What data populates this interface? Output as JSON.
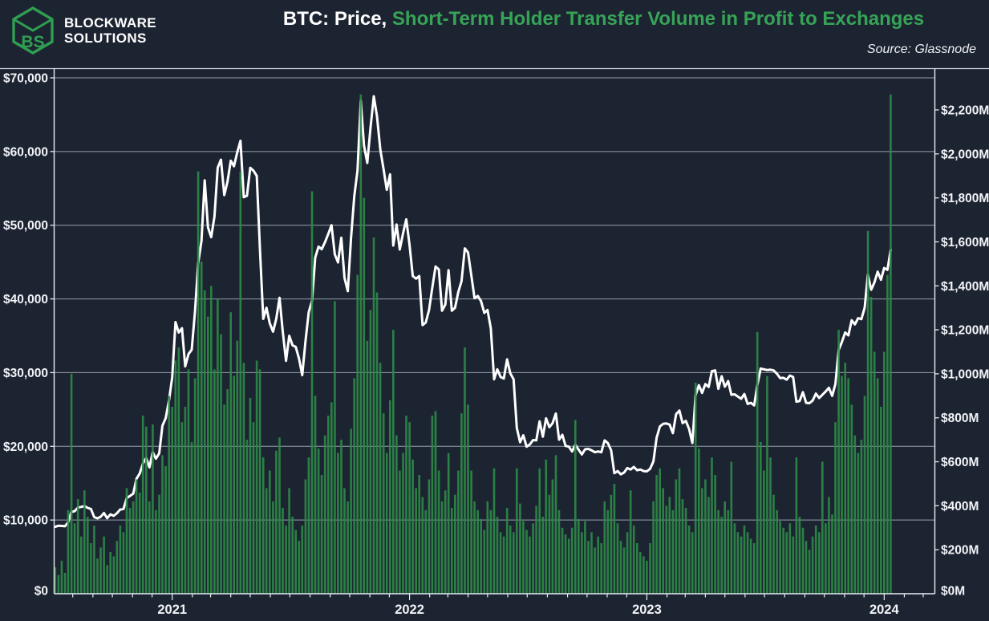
{
  "header": {
    "logo_line1": "BLOCKWARE",
    "logo_line2": "SOLUTIONS",
    "logo_mark": "BS",
    "title_white": "BTC: Price,",
    "title_green": "Short-Term Holder Transfer Volume in Profit to Exchanges",
    "source": "Source: Glassnode"
  },
  "colors": {
    "background": "#1d2431",
    "bars_green": "#2e8b48",
    "title_green": "#36a457",
    "logo_green": "#2f9e51",
    "price_line": "#ffffff",
    "grid": "#aab3c2",
    "frame": "#e8ecf2",
    "text": "#f1f4f8"
  },
  "chart_data": {
    "type": "line+bar",
    "title": "BTC: Price, Short-Term Holder Transfer Volume in Profit to Exchanges",
    "source": "Source: Glassnode",
    "start_date": "2020-07-05",
    "interval_days": 5,
    "grid": true,
    "left_axis": {
      "series": "BTC price (USD, white line)",
      "range": [
        0,
        70000
      ],
      "tick_values": [
        0,
        10000,
        20000,
        30000,
        40000,
        50000,
        60000,
        70000
      ],
      "tick_labels": [
        "$0",
        "$10,000",
        "$20,000",
        "$30,000",
        "$40,000",
        "$50,000",
        "$60,000",
        "$70,000"
      ]
    },
    "right_axis": {
      "series": "STH transfer volume in profit to exchanges (USD millions, green bars)",
      "range": [
        0,
        2400
      ],
      "tick_values": [
        0,
        200,
        400,
        600,
        800,
        1000,
        1200,
        1400,
        1600,
        1800,
        2000,
        2200
      ],
      "tick_labels": [
        "$0M",
        "$200M",
        "$400M",
        "$600M",
        "$800M",
        "$1,000M",
        "$1,200M",
        "$1,400M",
        "$1,600M",
        "$1,800M",
        "$2,000M",
        "$2,200M"
      ]
    },
    "year_ticks": [
      {
        "label": "2021",
        "day_offset": 180
      },
      {
        "label": "2022",
        "day_offset": 545
      },
      {
        "label": "2023",
        "day_offset": 910
      },
      {
        "label": "2024",
        "day_offset": 1275
      }
    ],
    "price": [
      9080,
      9230,
      9200,
      9160,
      9700,
      11100,
      11200,
      11680,
      11780,
      11900,
      11650,
      11500,
      10400,
      10230,
      10440,
      10950,
      10250,
      10770,
      10570,
      10930,
      11430,
      11500,
      12970,
      13270,
      13560,
      15590,
      16320,
      17650,
      18420,
      17150,
      19200,
      18320,
      19040,
      22800,
      23830,
      26250,
      29370,
      36850,
      35450,
      36020,
      30850,
      32520,
      33110,
      38300,
      44850,
      47900,
      56100,
      49700,
      48380,
      51200,
      57800,
      58900,
      54100,
      55900,
      58750,
      58000,
      59900,
      61450,
      53800,
      54000,
      57800,
      57400,
      56700,
      46700,
      37300,
      38800,
      36700,
      35550,
      37300,
      40150,
      35600,
      31600,
      35000,
      33700,
      33500,
      31900,
      29650,
      34300,
      38200,
      39750,
      45600,
      47100,
      46750,
      47700,
      48830,
      50000,
      46050,
      44950,
      48300,
      42850,
      41050,
      48200,
      53950,
      57400,
      66900,
      60800,
      58450,
      63200,
      67500,
      64800,
      60300,
      57600,
      54800,
      56900,
      47250,
      50100,
      46700,
      48900,
      50800,
      47300,
      43100,
      42750,
      43100,
      36450,
      36800,
      38500,
      41500,
      44400,
      44000,
      38400,
      39250,
      43900,
      38400,
      38800,
      40950,
      42400,
      46850,
      46300,
      43200,
      40100,
      40400,
      39700,
      38100,
      38500,
      36000,
      29100,
      30450,
      29400,
      29200,
      31800,
      29900,
      29100,
      22500,
      20550,
      21500,
      19950,
      20250,
      20850,
      20800,
      23400,
      21300,
      23800,
      22600,
      23150,
      24450,
      20900,
      21550,
      20050,
      19950,
      19300,
      20200,
      19550,
      18900,
      19600,
      19650,
      19450,
      19200,
      19300,
      19200,
      20800,
      20450,
      19450,
      16350,
      16650,
      16200,
      16450,
      17050,
      16850,
      17200,
      16750,
      16850,
      16650,
      16600,
      16950,
      17950,
      21150,
      22700,
      23050,
      23100,
      22950,
      21800,
      24350,
      24850,
      23150,
      23450,
      22350,
      20450,
      26950,
      28300,
      27250,
      28450,
      28050,
      30200,
      30300,
      27800,
      29500,
      28100,
      28850,
      27000,
      27050,
      26750,
      26450,
      27100,
      25750,
      25900,
      25550,
      28300,
      30550,
      30450,
      30350,
      30400,
      30300,
      29850,
      29250,
      29300,
      29050,
      29600,
      29400,
      26050,
      26150,
      27350,
      25900,
      25850,
      26200,
      27150,
      26550,
      27000,
      27450,
      27950,
      26850,
      28450,
      33100,
      34150,
      35450,
      35050,
      37100,
      36550,
      37400,
      37250,
      38800,
      43300,
      41250,
      42250,
      43700,
      42600,
      44200,
      43950,
      46650
    ],
    "volume_musd": [
      120,
      85,
      150,
      95,
      380,
      1000,
      320,
      430,
      260,
      470,
      350,
      230,
      310,
      160,
      210,
      260,
      130,
      190,
      170,
      240,
      310,
      280,
      480,
      390,
      420,
      520,
      460,
      810,
      760,
      420,
      770,
      380,
      450,
      630,
      580,
      900,
      850,
      1060,
      1120,
      780,
      850,
      1020,
      690,
      980,
      1920,
      1510,
      1380,
      1260,
      1400,
      1020,
      1340,
      1180,
      860,
      930,
      1280,
      990,
      1150,
      1920,
      1050,
      700,
      890,
      780,
      1060,
      1020,
      620,
      480,
      560,
      420,
      650,
      710,
      390,
      310,
      480,
      350,
      290,
      240,
      310,
      520,
      620,
      1830,
      900,
      660,
      540,
      720,
      810,
      870,
      1330,
      640,
      700,
      480,
      420,
      750,
      980,
      1450,
      2270,
      1800,
      1150,
      1290,
      1620,
      1370,
      1050,
      820,
      640,
      880,
      1200,
      720,
      560,
      640,
      810,
      780,
      610,
      480,
      540,
      440,
      380,
      520,
      810,
      830,
      560,
      420,
      470,
      640,
      390,
      450,
      560,
      820,
      1120,
      860,
      560,
      420,
      380,
      340,
      290,
      420,
      380,
      570,
      350,
      280,
      260,
      390,
      310,
      280,
      570,
      410,
      330,
      290,
      260,
      320,
      400,
      570,
      350,
      610,
      450,
      520,
      630,
      380,
      300,
      270,
      250,
      300,
      790,
      340,
      280,
      330,
      240,
      280,
      210,
      260,
      230,
      420,
      380,
      450,
      500,
      320,
      240,
      210,
      280,
      470,
      310,
      230,
      190,
      170,
      150,
      230,
      420,
      540,
      570,
      480,
      400,
      440,
      380,
      520,
      570,
      430,
      390,
      310,
      280,
      960,
      660,
      480,
      520,
      440,
      620,
      540,
      380,
      350,
      420,
      380,
      600,
      320,
      280,
      260,
      310,
      280,
      250,
      230,
      1190,
      690,
      560,
      990,
      620,
      450,
      380,
      330,
      300,
      280,
      320,
      260,
      620,
      350,
      300,
      240,
      200,
      260,
      310,
      280,
      600,
      320,
      440,
      360,
      780,
      1200,
      990,
      1050,
      980,
      860,
      720,
      640,
      700,
      900,
      1650,
      1350,
      1100,
      980,
      850,
      1100,
      1450,
      2270
    ]
  }
}
